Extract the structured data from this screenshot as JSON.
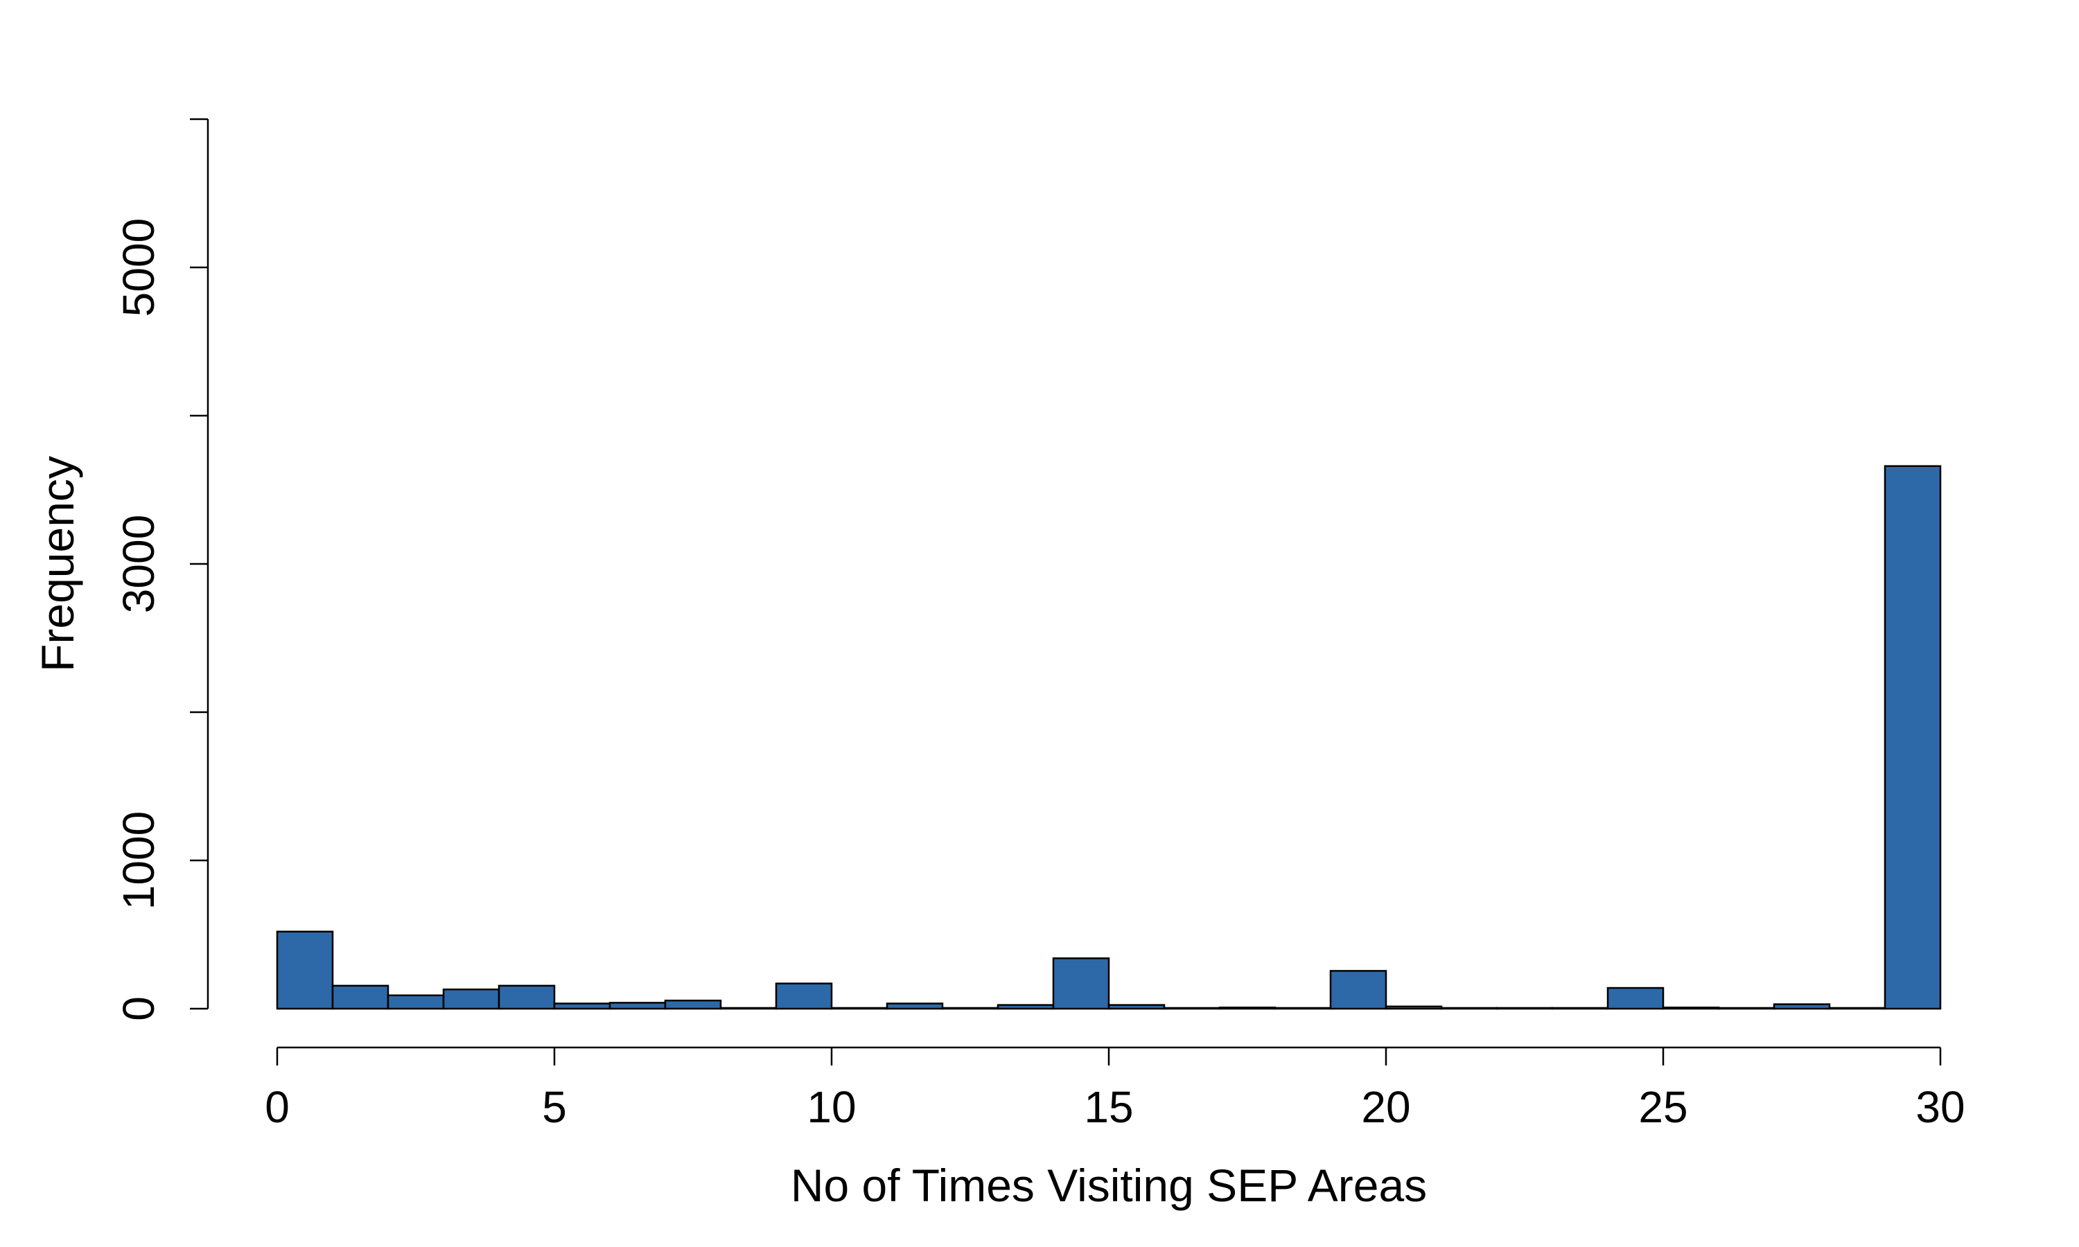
{
  "chart_data": {
    "type": "bar",
    "title": "",
    "xlabel": "No of Times Visiting SEP Areas",
    "ylabel": "Frequency",
    "xlim": [
      0,
      30
    ],
    "ylim": [
      0,
      6000
    ],
    "x_ticks": [
      0,
      5,
      10,
      15,
      20,
      25,
      30
    ],
    "x_tick_labels": [
      "0",
      "5",
      "10",
      "15",
      "20",
      "25",
      "30"
    ],
    "y_ticks": [
      0,
      1000,
      2000,
      3000,
      4000,
      5000,
      6000
    ],
    "y_tick_labels": [
      "0",
      "1000",
      "",
      "3000",
      "",
      "5000",
      ""
    ],
    "bin_width": 1,
    "bins": [
      {
        "x0": 0,
        "x1": 1,
        "value": 520
      },
      {
        "x0": 1,
        "x1": 2,
        "value": 155
      },
      {
        "x0": 2,
        "x1": 3,
        "value": 90
      },
      {
        "x0": 3,
        "x1": 4,
        "value": 130
      },
      {
        "x0": 4,
        "x1": 5,
        "value": 155
      },
      {
        "x0": 5,
        "x1": 6,
        "value": 35
      },
      {
        "x0": 6,
        "x1": 7,
        "value": 40
      },
      {
        "x0": 7,
        "x1": 8,
        "value": 55
      },
      {
        "x0": 8,
        "x1": 9,
        "value": 5
      },
      {
        "x0": 9,
        "x1": 10,
        "value": 170
      },
      {
        "x0": 10,
        "x1": 11,
        "value": 5
      },
      {
        "x0": 11,
        "x1": 12,
        "value": 35
      },
      {
        "x0": 12,
        "x1": 13,
        "value": 5
      },
      {
        "x0": 13,
        "x1": 14,
        "value": 25
      },
      {
        "x0": 14,
        "x1": 15,
        "value": 340
      },
      {
        "x0": 15,
        "x1": 16,
        "value": 25
      },
      {
        "x0": 16,
        "x1": 17,
        "value": 5
      },
      {
        "x0": 17,
        "x1": 18,
        "value": 8
      },
      {
        "x0": 18,
        "x1": 19,
        "value": 5
      },
      {
        "x0": 19,
        "x1": 20,
        "value": 255
      },
      {
        "x0": 20,
        "x1": 21,
        "value": 15
      },
      {
        "x0": 21,
        "x1": 22,
        "value": 5
      },
      {
        "x0": 22,
        "x1": 23,
        "value": 5
      },
      {
        "x0": 23,
        "x1": 24,
        "value": 5
      },
      {
        "x0": 24,
        "x1": 25,
        "value": 140
      },
      {
        "x0": 25,
        "x1": 26,
        "value": 8
      },
      {
        "x0": 26,
        "x1": 27,
        "value": 5
      },
      {
        "x0": 27,
        "x1": 28,
        "value": 30
      },
      {
        "x0": 28,
        "x1": 29,
        "value": 5
      },
      {
        "x0": 29,
        "x1": 30,
        "value": 3660
      }
    ],
    "bar_color": "#2d69a8",
    "edge_color": "#000000",
    "grid": false
  }
}
